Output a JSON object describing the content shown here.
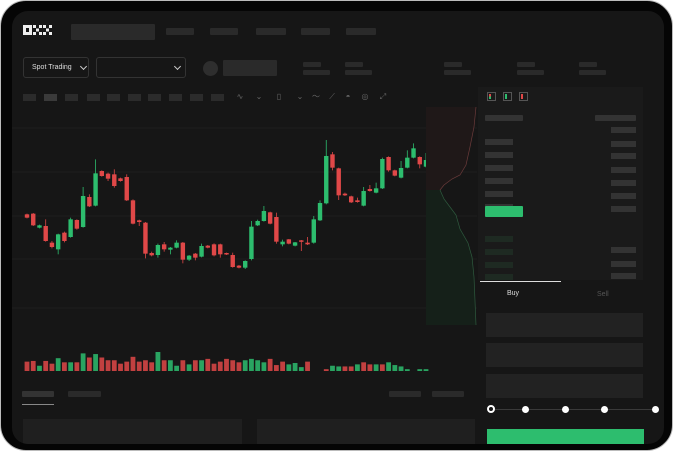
{
  "header": {
    "logo": "OKX"
  },
  "selector": {
    "market_type": "Spot Trading",
    "pair": ""
  },
  "order_form": {
    "tabs": [
      {
        "label": "Buy",
        "active": true
      },
      {
        "label": "Sell",
        "active": false
      }
    ],
    "leverage_slider": {
      "value_percent": 0,
      "stops": 5
    }
  },
  "colors": {
    "up": "#2dbd6e",
    "down": "#e04848",
    "background": "#161616",
    "frame": "#050505"
  },
  "toolbar": {
    "icons": [
      "indicator-icon",
      "chevron-down-icon",
      "candle-type-icon",
      "chevron-down-icon",
      "line-tool-icon",
      "ruler-icon",
      "camera-icon",
      "settings-icon",
      "fullscreen-icon"
    ]
  },
  "orderbook": {
    "view_icons": [
      "both-sides-icon",
      "buy-side-icon",
      "sell-side-icon"
    ]
  },
  "chart_data": {
    "type": "candlestick",
    "title": "",
    "xlabel": "",
    "ylabel": "",
    "grid": true,
    "candles": [
      [
        230,
        220,
        232,
        218
      ],
      [
        232,
        197,
        234,
        195
      ],
      [
        190,
        197,
        199,
        188
      ],
      [
        195,
        150,
        215,
        148
      ],
      [
        145,
        132,
        150,
        128
      ],
      [
        125,
        170,
        172,
        110
      ],
      [
        175,
        150,
        178,
        146
      ],
      [
        162,
        215,
        220,
        160
      ],
      [
        213,
        187,
        215,
        184
      ],
      [
        192,
        285,
        312,
        190
      ],
      [
        282,
        254,
        290,
        252
      ],
      [
        256,
        353,
        395,
        254
      ],
      [
        360,
        345,
        362,
        343
      ],
      [
        352,
        337,
        355,
        330
      ],
      [
        350,
        315,
        365,
        310
      ],
      [
        338,
        330,
        340,
        328
      ],
      [
        342,
        272,
        350,
        270
      ],
      [
        272,
        202,
        275,
        200
      ],
      [
        212,
        207,
        214,
        195
      ],
      [
        205,
        112,
        207,
        98
      ],
      [
        114,
        107,
        118,
        104
      ],
      [
        108,
        138,
        142,
        100
      ],
      [
        140,
        125,
        147,
        118
      ],
      [
        124,
        130,
        132,
        110
      ],
      [
        130,
        145,
        152,
        128
      ],
      [
        145,
        94,
        147,
        83
      ],
      [
        94,
        106,
        108,
        90
      ],
      [
        112,
        100,
        114,
        92
      ],
      [
        103,
        135,
        142,
        101
      ],
      [
        136,
        130,
        138,
        128
      ],
      [
        140,
        107,
        143,
        104
      ],
      [
        140,
        110,
        142,
        100
      ],
      [
        114,
        110,
        115,
        108
      ],
      [
        108,
        72,
        115,
        70
      ],
      [
        76,
        70,
        78,
        68
      ],
      [
        70,
        90,
        92,
        66
      ],
      [
        96,
        193,
        210,
        92
      ],
      [
        197,
        210,
        214,
        195
      ],
      [
        210,
        240,
        255,
        208
      ],
      [
        236,
        202,
        238,
        200
      ],
      [
        222,
        148,
        235,
        142
      ],
      [
        140,
        148,
        154,
        134
      ],
      [
        155,
        142,
        156,
        140
      ],
      [
        136,
        146,
        147,
        134
      ],
      [
        152,
        148,
        153,
        120
      ],
      [
        145,
        140,
        162,
        138
      ],
      [
        145,
        215,
        225,
        142
      ],
      [
        212,
        264,
        272,
        210
      ],
      [
        263,
        405,
        453,
        260
      ],
      [
        410,
        370,
        417,
        362
      ],
      [
        368,
        287,
        370,
        273
      ],
      [
        292,
        287,
        295,
        285
      ],
      [
        284,
        266,
        286,
        264
      ],
      [
        272,
        267,
        280,
        265
      ],
      [
        256,
        300,
        312,
        254
      ],
      [
        306,
        300,
        318,
        298
      ],
      [
        295,
        308,
        325,
        293
      ],
      [
        308,
        396,
        400,
        306
      ],
      [
        402,
        362,
        404,
        358
      ],
      [
        362,
        346,
        364,
        344
      ],
      [
        340,
        369,
        390,
        338
      ],
      [
        370,
        400,
        422,
        368
      ],
      [
        400,
        428,
        443,
        398
      ],
      [
        402,
        380,
        404,
        368
      ],
      [
        373,
        393,
        414,
        371
      ]
    ],
    "volumes": [
      [
        36,
        "d"
      ],
      [
        38,
        "d"
      ],
      [
        24,
        "u"
      ],
      [
        38,
        "d"
      ],
      [
        30,
        "d"
      ],
      [
        46,
        "u"
      ],
      [
        34,
        "d"
      ],
      [
        34,
        "u"
      ],
      [
        34,
        "d"
      ],
      [
        60,
        "u"
      ],
      [
        48,
        "d"
      ],
      [
        58,
        "u"
      ],
      [
        48,
        "d"
      ],
      [
        40,
        "d"
      ],
      [
        40,
        "d"
      ],
      [
        30,
        "d"
      ],
      [
        36,
        "d"
      ],
      [
        50,
        "d"
      ],
      [
        36,
        "d"
      ],
      [
        40,
        "d"
      ],
      [
        34,
        "d"
      ],
      [
        64,
        "u"
      ],
      [
        40,
        "d"
      ],
      [
        40,
        "u"
      ],
      [
        24,
        "u"
      ],
      [
        40,
        "d"
      ],
      [
        28,
        "u"
      ],
      [
        40,
        "d"
      ],
      [
        40,
        "u"
      ],
      [
        44,
        "d"
      ],
      [
        30,
        "d"
      ],
      [
        36,
        "d"
      ],
      [
        44,
        "d"
      ],
      [
        40,
        "d"
      ],
      [
        34,
        "d"
      ],
      [
        40,
        "u"
      ],
      [
        44,
        "u"
      ],
      [
        40,
        "u"
      ],
      [
        34,
        "u"
      ],
      [
        44,
        "d"
      ],
      [
        26,
        "d"
      ],
      [
        36,
        "d"
      ],
      [
        28,
        "u"
      ],
      [
        32,
        "u"
      ],
      [
        20,
        "u"
      ],
      [
        36,
        "d"
      ],
      [
        8,
        "d"
      ],
      [
        8,
        "u"
      ],
      [
        14,
        "d"
      ],
      [
        24,
        "u"
      ],
      [
        22,
        "u"
      ],
      [
        22,
        "d"
      ],
      [
        22,
        "d"
      ],
      [
        28,
        "u"
      ],
      [
        34,
        "d"
      ],
      [
        28,
        "d"
      ],
      [
        28,
        "u"
      ],
      [
        28,
        "d"
      ],
      [
        34,
        "u"
      ],
      [
        26,
        "u"
      ],
      [
        22,
        "u"
      ],
      [
        14,
        "u"
      ],
      [
        8,
        "d"
      ],
      [
        14,
        "u"
      ],
      [
        14,
        "u"
      ]
    ]
  }
}
